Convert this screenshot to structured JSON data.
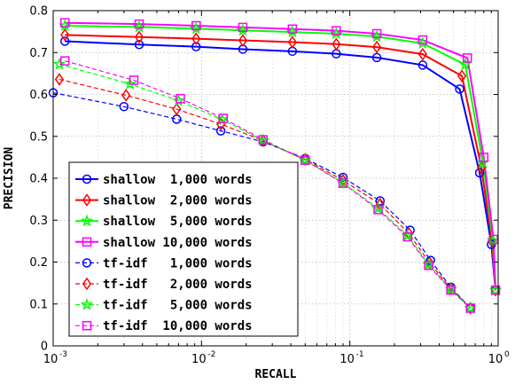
{
  "chart_data": {
    "type": "line",
    "title": "",
    "xlabel": "RECALL",
    "ylabel": "PRECISION",
    "xscale": "log",
    "xlim": [
      0.001,
      1
    ],
    "ylim": [
      0,
      0.8
    ],
    "grid": true,
    "legend_position": "lower-left",
    "x_ticks": [
      {
        "base": "10",
        "exp": "-3",
        "value": 0.001
      },
      {
        "base": "10",
        "exp": "-2",
        "value": 0.01
      },
      {
        "base": "10",
        "exp": "-1",
        "value": 0.1
      },
      {
        "base": "10",
        "exp": "0",
        "value": 1
      }
    ],
    "y_ticks": [
      "0",
      "0.1",
      "0.2",
      "0.3",
      "0.4",
      "0.5",
      "0.6",
      "0.7",
      "0.8"
    ],
    "series": [
      {
        "name": "shallow  1,000 words",
        "color": "#0000ff",
        "style": "solid",
        "marker": "circle",
        "x": [
          0.0012,
          0.0038,
          0.0092,
          0.019,
          0.041,
          0.081,
          0.152,
          0.31,
          0.55,
          0.75,
          0.9,
          0.96
        ],
        "y": [
          0.727,
          0.719,
          0.714,
          0.708,
          0.703,
          0.697,
          0.688,
          0.67,
          0.613,
          0.413,
          0.242,
          0.133
        ]
      },
      {
        "name": "shallow  2,000 words",
        "color": "#ff0000",
        "style": "solid",
        "marker": "diamond",
        "x": [
          0.0012,
          0.0038,
          0.0092,
          0.019,
          0.041,
          0.081,
          0.152,
          0.31,
          0.57,
          0.77,
          0.91,
          0.96
        ],
        "y": [
          0.742,
          0.737,
          0.733,
          0.729,
          0.725,
          0.72,
          0.713,
          0.696,
          0.644,
          0.425,
          0.25,
          0.133
        ]
      },
      {
        "name": "shallow  5,000 words",
        "color": "#00ff00",
        "style": "solid",
        "marker": "star",
        "x": [
          0.0012,
          0.0038,
          0.0092,
          0.019,
          0.041,
          0.081,
          0.152,
          0.31,
          0.6,
          0.79,
          0.92,
          0.96
        ],
        "y": [
          0.764,
          0.761,
          0.757,
          0.753,
          0.749,
          0.745,
          0.738,
          0.722,
          0.671,
          0.437,
          0.252,
          0.133
        ]
      },
      {
        "name": "shallow 10,000 words",
        "color": "#ff00ff",
        "style": "solid",
        "marker": "square",
        "x": [
          0.0012,
          0.0038,
          0.0092,
          0.019,
          0.041,
          0.081,
          0.152,
          0.31,
          0.62,
          0.8,
          0.93,
          0.96
        ],
        "y": [
          0.771,
          0.768,
          0.764,
          0.76,
          0.756,
          0.752,
          0.745,
          0.73,
          0.687,
          0.45,
          0.254,
          0.133
        ]
      },
      {
        "name": "tf-idf   1,000 words",
        "color": "#0000ff",
        "style": "dashed",
        "marker": "circle",
        "x": [
          0.001,
          0.003,
          0.0068,
          0.0135,
          0.026,
          0.05,
          0.09,
          0.16,
          0.255,
          0.35,
          0.48,
          0.65
        ],
        "y": [
          0.604,
          0.571,
          0.541,
          0.513,
          0.487,
          0.447,
          0.402,
          0.346,
          0.276,
          0.204,
          0.14,
          0.09
        ]
      },
      {
        "name": "tf-idf   2,000 words",
        "color": "#ff0000",
        "style": "dashed",
        "marker": "diamond",
        "x": [
          0.0011,
          0.0031,
          0.0068,
          0.0135,
          0.026,
          0.05,
          0.09,
          0.16,
          0.25,
          0.345,
          0.48,
          0.65
        ],
        "y": [
          0.636,
          0.598,
          0.565,
          0.529,
          0.49,
          0.445,
          0.395,
          0.338,
          0.268,
          0.198,
          0.137,
          0.09
        ]
      },
      {
        "name": "tf-idf   5,000 words",
        "color": "#00ff00",
        "style": "dashed",
        "marker": "star",
        "x": [
          0.0011,
          0.0033,
          0.007,
          0.0138,
          0.026,
          0.05,
          0.09,
          0.155,
          0.245,
          0.34,
          0.48,
          0.65
        ],
        "y": [
          0.672,
          0.625,
          0.585,
          0.54,
          0.49,
          0.443,
          0.389,
          0.328,
          0.263,
          0.194,
          0.135,
          0.09
        ]
      },
      {
        "name": "tf-idf  10,000 words",
        "color": "#ff00ff",
        "style": "dashed",
        "marker": "square",
        "x": [
          0.0012,
          0.0035,
          0.0072,
          0.014,
          0.026,
          0.05,
          0.09,
          0.155,
          0.245,
          0.34,
          0.48,
          0.65
        ],
        "y": [
          0.68,
          0.634,
          0.59,
          0.543,
          0.492,
          0.443,
          0.388,
          0.325,
          0.26,
          0.192,
          0.133,
          0.09
        ]
      }
    ]
  }
}
